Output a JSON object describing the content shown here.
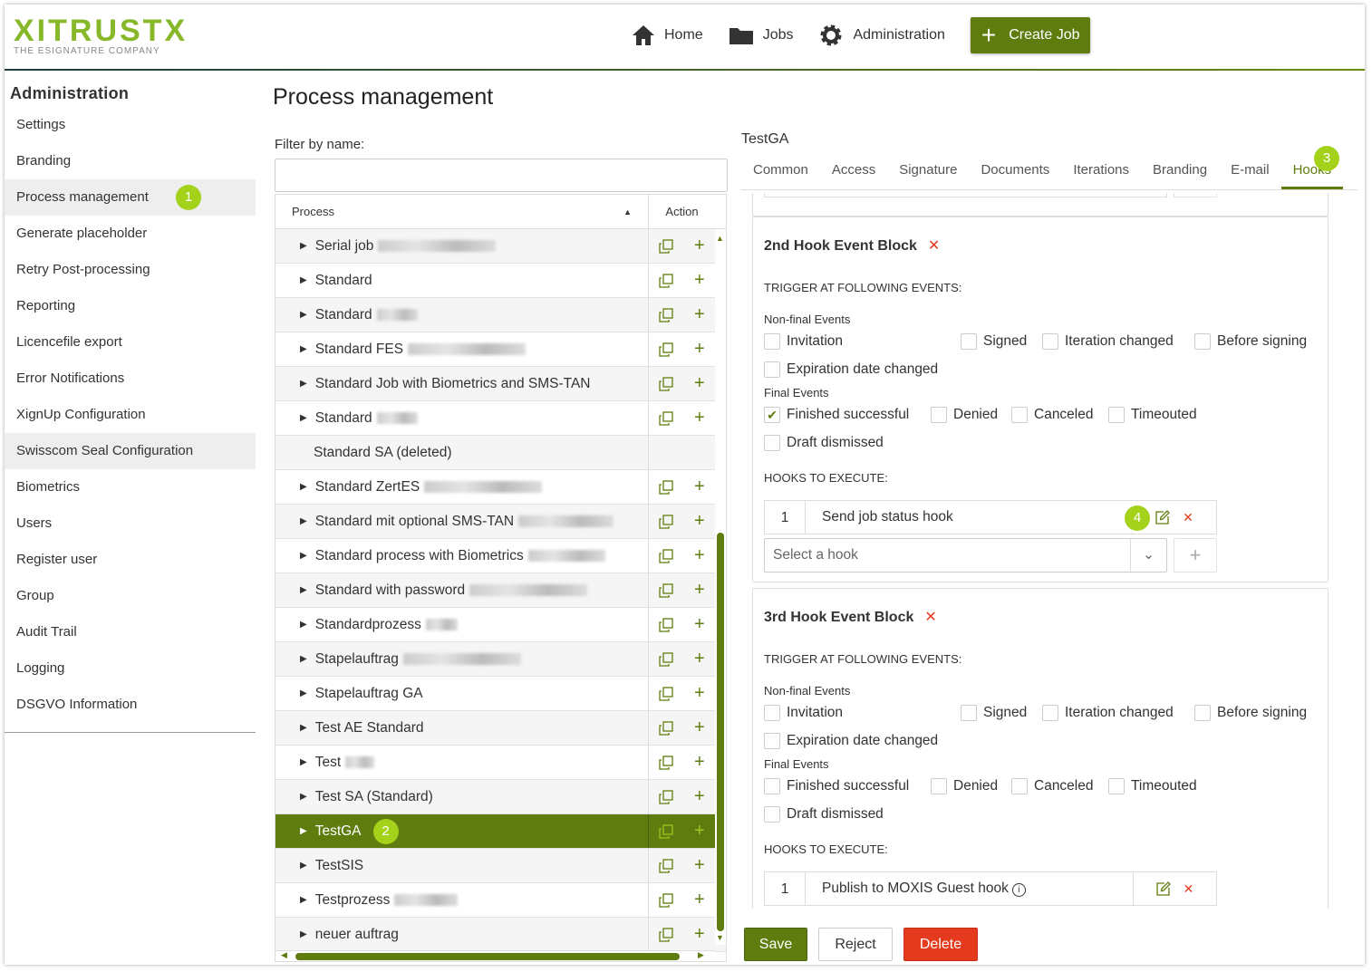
{
  "header": {
    "logo_text": "XITRUSTX",
    "logo_tagline": "THE ESIGNATURE COMPANY",
    "nav": [
      {
        "label": "Home",
        "icon": "home-icon"
      },
      {
        "label": "Jobs",
        "icon": "folder-icon"
      },
      {
        "label": "Administration",
        "icon": "gear-icon"
      }
    ],
    "create_job": "Create Job"
  },
  "colors": {
    "brand": "#5f7d0e",
    "badge": "#a4d21b",
    "danger": "#e63a1f"
  },
  "sidebar": {
    "title": "Administration",
    "items": [
      {
        "label": "Settings"
      },
      {
        "label": "Branding"
      },
      {
        "label": "Process management",
        "active": true,
        "badge": "1"
      },
      {
        "label": "Generate placeholder"
      },
      {
        "label": "Retry Post-processing"
      },
      {
        "label": "Reporting"
      },
      {
        "label": "Licencefile export"
      },
      {
        "label": "Error Notifications"
      },
      {
        "label": "XignUp Configuration"
      },
      {
        "label": "Swisscom Seal Configuration",
        "highlight": true
      },
      {
        "label": "Biometrics"
      },
      {
        "label": "Users"
      },
      {
        "label": "Register user"
      },
      {
        "label": "Group"
      },
      {
        "label": "Audit Trail"
      },
      {
        "label": "Logging"
      },
      {
        "label": "DSGVO Information"
      }
    ]
  },
  "main": {
    "title": "Process management",
    "filter_label": "Filter by name:",
    "filter_value": "",
    "table": {
      "col_process": "Process",
      "col_action": "Action",
      "rows": [
        {
          "name": "Serial job",
          "blurred": true
        },
        {
          "name": "Standard"
        },
        {
          "name": "Standard",
          "blurred": true
        },
        {
          "name": "Standard FES",
          "blurred": true
        },
        {
          "name": "Standard Job with Biometrics and SMS-TAN"
        },
        {
          "name": "Standard",
          "blurred": true
        },
        {
          "name": "Standard SA (deleted)",
          "deleted": true
        },
        {
          "name": "Standard ZertES",
          "blurred": true
        },
        {
          "name": "Standard mit optional SMS-TAN",
          "blurred": true
        },
        {
          "name": "Standard process with Biometrics",
          "blurred": true
        },
        {
          "name": "Standard with password",
          "blurred": true
        },
        {
          "name": "Standardprozess",
          "blurred": true
        },
        {
          "name": "Stapelauftrag",
          "blurred": true
        },
        {
          "name": "Stapelauftrag GA"
        },
        {
          "name": "Test AE Standard"
        },
        {
          "name": "Test",
          "blurred": true
        },
        {
          "name": "Test SA (Standard)"
        },
        {
          "name": "TestGA",
          "selected": true,
          "badge": "2"
        },
        {
          "name": "TestSIS"
        },
        {
          "name": "Testprozess",
          "blurred": true
        },
        {
          "name": "neuer auftrag"
        }
      ]
    }
  },
  "detail": {
    "title": "TestGA",
    "tabs": [
      "Common",
      "Access",
      "Signature",
      "Documents",
      "Iterations",
      "Branding",
      "E-mail",
      "Hooks"
    ],
    "active_tab": "Hooks",
    "tab_badge": "3",
    "blocks": [
      {
        "title": "2nd Hook Event Block",
        "trigger_label": "TRIGGER AT FOLLOWING EVENTS:",
        "nonfinal_label": "Non-final Events",
        "final_label": "Final Events",
        "events": {
          "invitation": "Invitation",
          "signed": "Signed",
          "iteration": "Iteration changed",
          "before": "Before signing",
          "expiration": "Expiration date changed",
          "finished": "Finished successful",
          "denied": "Denied",
          "canceled": "Canceled",
          "timeouted": "Timeouted",
          "draft": "Draft dismissed"
        },
        "checked": [
          "finished"
        ],
        "hooks_label": "HOOKS TO EXECUTE:",
        "hooks": [
          {
            "num": "1",
            "name": "Send job status hook",
            "badge": "4"
          }
        ],
        "select_placeholder": "Select a hook"
      },
      {
        "title": "3rd Hook Event Block",
        "trigger_label": "TRIGGER AT FOLLOWING EVENTS:",
        "nonfinal_label": "Non-final Events",
        "final_label": "Final Events",
        "events": {
          "invitation": "Invitation",
          "signed": "Signed",
          "iteration": "Iteration changed",
          "before": "Before signing",
          "expiration": "Expiration date changed",
          "finished": "Finished successful",
          "denied": "Denied",
          "canceled": "Canceled",
          "timeouted": "Timeouted",
          "draft": "Draft dismissed"
        },
        "checked": [],
        "hooks_label": "HOOKS TO EXECUTE:",
        "hooks": [
          {
            "num": "1",
            "name": "Publish to MOXIS Guest hook",
            "info": true
          }
        ]
      }
    ],
    "buttons": {
      "save": "Save",
      "reject": "Reject",
      "delete": "Delete"
    }
  }
}
